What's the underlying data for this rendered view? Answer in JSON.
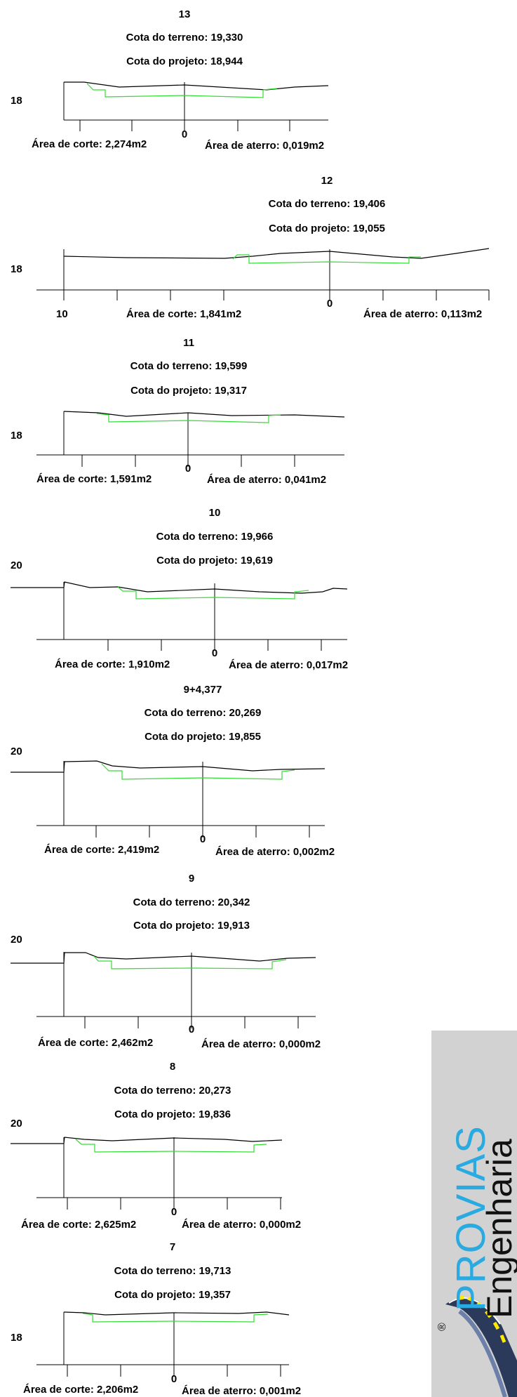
{
  "sections": [
    {
      "station": "13",
      "cota_terreno": "Cota do terreno: 19,330",
      "cota_projeto": "Cota do projeto: 18,944",
      "elev": "18",
      "zero": "0",
      "left_offset": "",
      "area_corte": "Área de corte: 2,274m2",
      "area_aterro": "Área de aterro: 0,019m2"
    },
    {
      "station": "12",
      "cota_terreno": "Cota do terreno: 19,406",
      "cota_projeto": "Cota do projeto: 19,055",
      "elev": "18",
      "zero": "0",
      "left_offset": "10",
      "area_corte": "Área de corte: 1,841m2",
      "area_aterro": "Área de aterro: 0,113m2"
    },
    {
      "station": "11",
      "cota_terreno": "Cota do terreno: 19,599",
      "cota_projeto": "Cota do projeto: 19,317",
      "elev": "18",
      "zero": "0",
      "left_offset": "",
      "area_corte": "Área de corte: 1,591m2",
      "area_aterro": "Área de aterro: 0,041m2"
    },
    {
      "station": "10",
      "cota_terreno": "Cota do terreno: 19,966",
      "cota_projeto": "Cota do projeto: 19,619",
      "elev": "20",
      "zero": "0",
      "left_offset": "",
      "area_corte": "Área de corte: 1,910m2",
      "area_aterro": "Área de aterro: 0,017m2"
    },
    {
      "station": "9+4,377",
      "cota_terreno": "Cota do terreno: 20,269",
      "cota_projeto": "Cota do projeto: 19,855",
      "elev": "20",
      "zero": "0",
      "left_offset": "",
      "area_corte": "Área de corte: 2,419m2",
      "area_aterro": "Área de aterro: 0,002m2"
    },
    {
      "station": "9",
      "cota_terreno": "Cota do terreno: 20,342",
      "cota_projeto": "Cota do projeto: 19,913",
      "elev": "20",
      "zero": "0",
      "left_offset": "",
      "area_corte": "Área de corte: 2,462m2",
      "area_aterro": "Área de aterro: 0,000m2"
    },
    {
      "station": "8",
      "cota_terreno": "Cota do terreno: 20,273",
      "cota_projeto": "Cota do projeto: 19,836",
      "elev": "20",
      "zero": "0",
      "left_offset": "",
      "area_corte": "Área de corte: 2,625m2",
      "area_aterro": "Área de aterro: 0,000m2"
    },
    {
      "station": "7",
      "cota_terreno": "Cota do terreno: 19,713",
      "cota_projeto": "Cota do projeto: 19,357",
      "elev": "18",
      "zero": "0",
      "left_offset": "",
      "area_corte": "Área de corte: 2,206m2",
      "area_aterro": "Área de aterro: 0,001m2"
    }
  ],
  "logo": {
    "brand": "PROVIAS",
    "subtitle": "Engenharia",
    "registered": "®",
    "brand_color": "#29abe2",
    "background_color": "#d2d2d2"
  },
  "colors": {
    "terrain": "#000000",
    "project": "#33dd33"
  }
}
